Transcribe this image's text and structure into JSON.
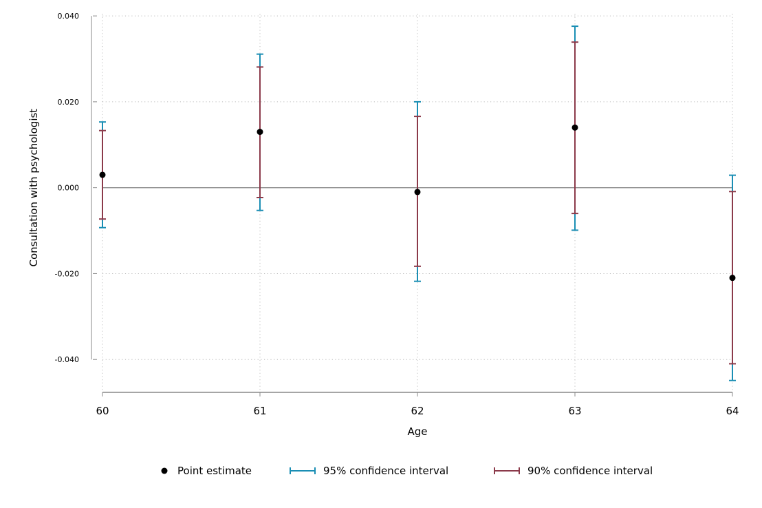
{
  "chart_data": {
    "type": "scatter",
    "title": "",
    "xlabel": "Age",
    "ylabel": "Consultation with psychologist",
    "x": [
      60,
      61,
      62,
      63,
      64
    ],
    "xticks": [
      "60",
      "61",
      "62",
      "63",
      "64"
    ],
    "yticks": [
      0.04,
      0.02,
      0.0,
      -0.02,
      -0.04
    ],
    "ytick_labels": [
      "0.040",
      "0.020",
      "0.000",
      "-0.020",
      "-0.040"
    ],
    "xlim": [
      60,
      64
    ],
    "ylim": [
      -0.0475,
      0.0405
    ],
    "grid": true,
    "reference_line": 0,
    "legend_position": "bottom",
    "series": [
      {
        "name": "Point estimate",
        "type": "point",
        "color": "#000000",
        "values": [
          0.003,
          0.013,
          -0.001,
          0.014,
          -0.021
        ]
      },
      {
        "name": "95% confidence interval",
        "type": "errorbar",
        "color": "#1a8eb4",
        "lower": [
          -0.0093,
          -0.0053,
          -0.0218,
          -0.0099,
          -0.0449
        ],
        "upper": [
          0.0153,
          0.0311,
          0.02,
          0.0376,
          0.0029
        ]
      },
      {
        "name": "90% confidence interval",
        "type": "errorbar",
        "color": "#8b3a4a",
        "lower": [
          -0.0073,
          -0.0023,
          -0.0183,
          -0.006,
          -0.041
        ],
        "upper": [
          0.0133,
          0.0281,
          0.0166,
          0.0339,
          -0.0009
        ]
      }
    ],
    "colors": {
      "axis": "#888888",
      "grid": "#bbbbbb",
      "zero_line": "#888888"
    }
  }
}
